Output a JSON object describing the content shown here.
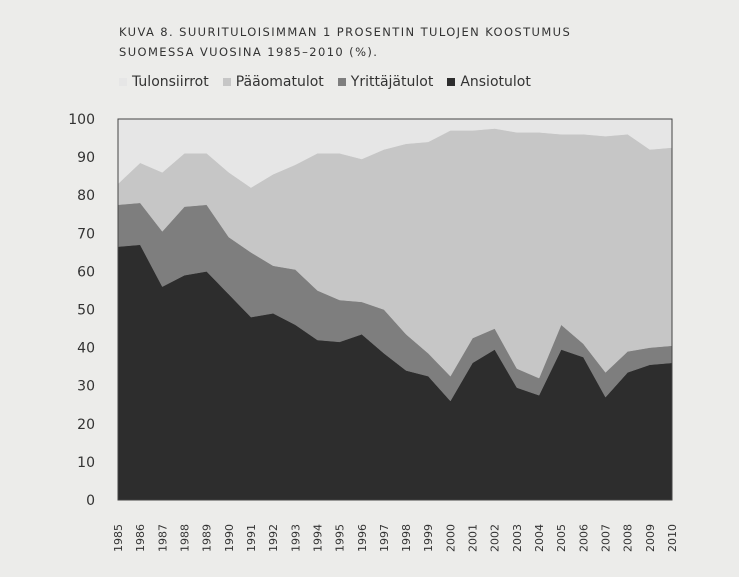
{
  "title_lines": [
    "KUVA 8. SUURITULOISIMMAN 1 PROSENTIN TULOJEN KOOSTUMUS",
    "SUOMESSA VUOSINA 1985–2010 (%)."
  ],
  "colors": {
    "Tulonsiirrot": "#e6e6e6",
    "Pääomatulot": "#c6c6c6",
    "Yrittäjätulot": "#7e7e7e",
    "Ansiotulot": "#2d2d2d",
    "background": "#ececea",
    "border": "#444444"
  },
  "chart_data": {
    "type": "area",
    "stacked": true,
    "title": "KUVA 8. SUURITULOISIMMAN 1 PROSENTIN TULOJEN KOOSTUMUS SUOMESSA VUOSINA 1985–2010 (%).",
    "xlabel": "",
    "ylabel": "",
    "ylim": [
      0,
      100
    ],
    "yticks": [
      0,
      10,
      20,
      30,
      40,
      50,
      60,
      70,
      80,
      90,
      100
    ],
    "grid": false,
    "legend_position": "top",
    "legend_order": [
      "Tulonsiirrot",
      "Pääomatulot",
      "Yrittäjätulot",
      "Ansiotulot"
    ],
    "x": [
      "1985",
      "1986",
      "1987",
      "1988",
      "1989",
      "1990",
      "1991",
      "1992",
      "1993",
      "1994",
      "1995",
      "1996",
      "1997",
      "1998",
      "1999",
      "2000",
      "2001",
      "2002",
      "2003",
      "2004",
      "2005",
      "2006",
      "2007",
      "2008",
      "2009",
      "2010"
    ],
    "series": [
      {
        "name": "Ansiotulot",
        "values": [
          66.5,
          67,
          56,
          59,
          60,
          54,
          48,
          49,
          46,
          42,
          41.5,
          43.5,
          38.5,
          34,
          32.5,
          26,
          36,
          39.5,
          29.5,
          27.5,
          39.5,
          37.5,
          27,
          33.5,
          35.5,
          36
        ]
      },
      {
        "name": "Yrittäjätulot",
        "values": [
          11,
          11,
          14.5,
          18,
          17.5,
          15,
          17,
          12.5,
          14.5,
          13,
          11,
          8.5,
          11.5,
          9.5,
          6,
          6.5,
          6.5,
          5.5,
          5,
          4.5,
          6.5,
          3.5,
          6.5,
          5.5,
          4.5,
          4.5
        ]
      },
      {
        "name": "Pääomatulot",
        "values": [
          5.5,
          10.5,
          15.5,
          14,
          13.5,
          17,
          17,
          24,
          27.5,
          36,
          38.5,
          37.5,
          42,
          50,
          55.5,
          64.5,
          54.5,
          52.5,
          62,
          64.5,
          50,
          55,
          62,
          57,
          52,
          52
        ]
      },
      {
        "name": "Tulonsiirrot",
        "values": [
          17,
          11.5,
          14,
          9,
          9,
          14,
          18,
          14.5,
          12,
          9,
          9,
          10.5,
          8,
          6.5,
          6,
          3,
          3,
          2.5,
          3.5,
          3.5,
          4,
          4,
          4.5,
          4,
          8,
          7.5
        ]
      }
    ]
  }
}
